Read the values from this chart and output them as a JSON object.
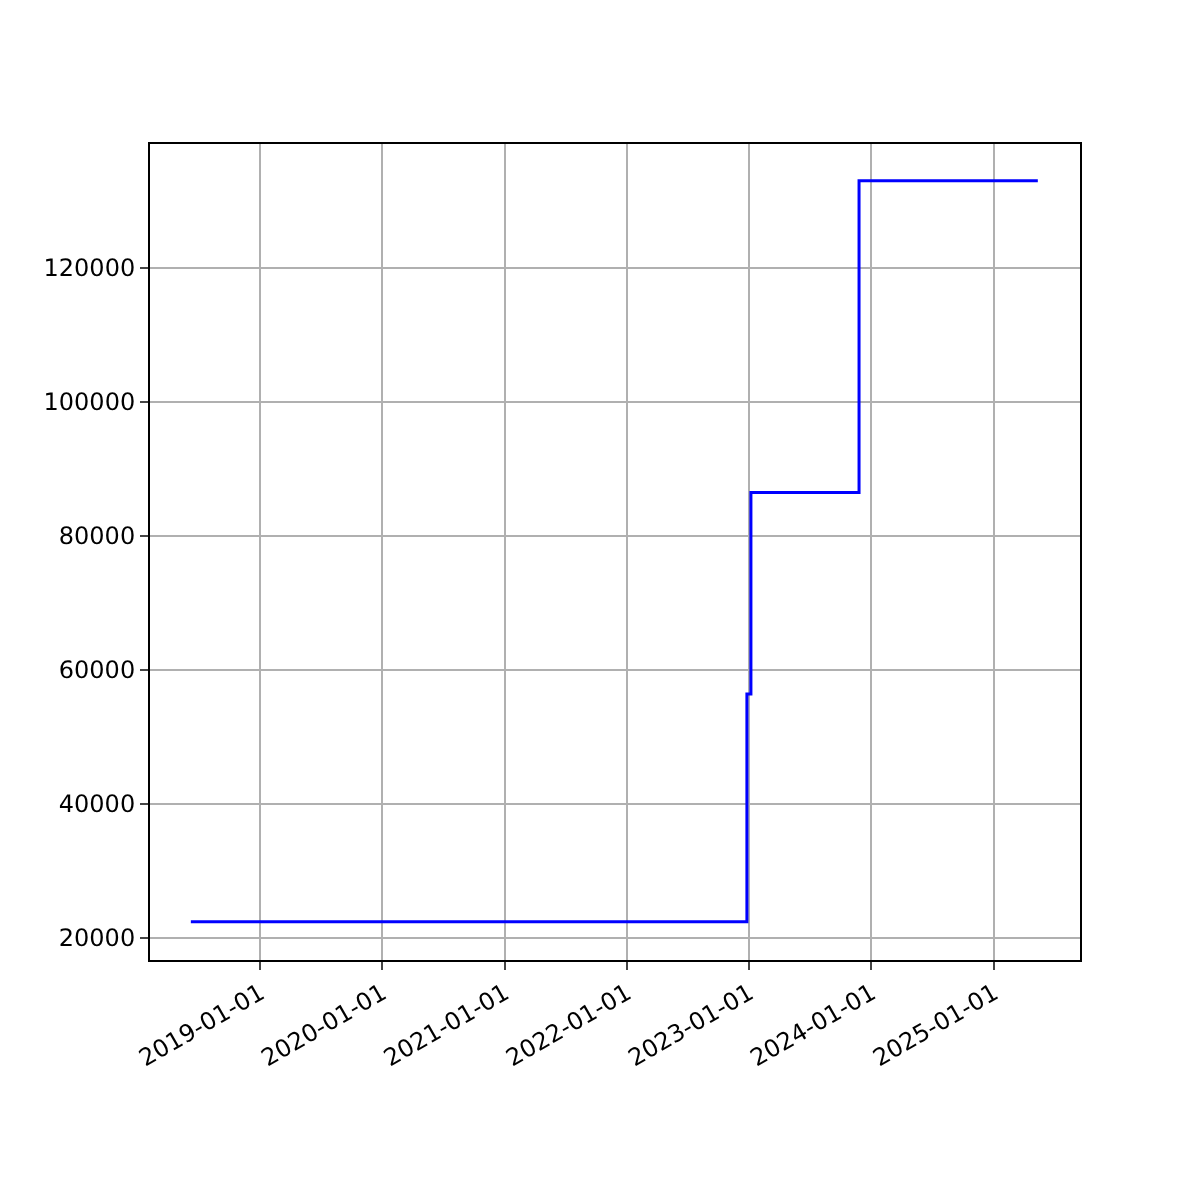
{
  "chart_data": {
    "type": "step",
    "x": [
      "2018-06-08",
      "2022-12-25",
      "2023-01-06",
      "2023-11-25",
      "2025-05-12"
    ],
    "series": [
      {
        "color": "#0000ff",
        "values": [
          22400,
          56400,
          86500,
          133000,
          133000
        ]
      }
    ],
    "xlim": [
      "2018-02-06",
      "2025-09-15"
    ],
    "xticks": [
      "2019-01-01",
      "2020-01-01",
      "2021-01-01",
      "2022-01-01",
      "2023-01-01",
      "2024-01-01",
      "2025-01-01"
    ],
    "ylim": [
      16700,
      138500
    ],
    "yticks": [
      20000,
      40000,
      60000,
      80000,
      100000,
      120000
    ],
    "grid": true
  }
}
